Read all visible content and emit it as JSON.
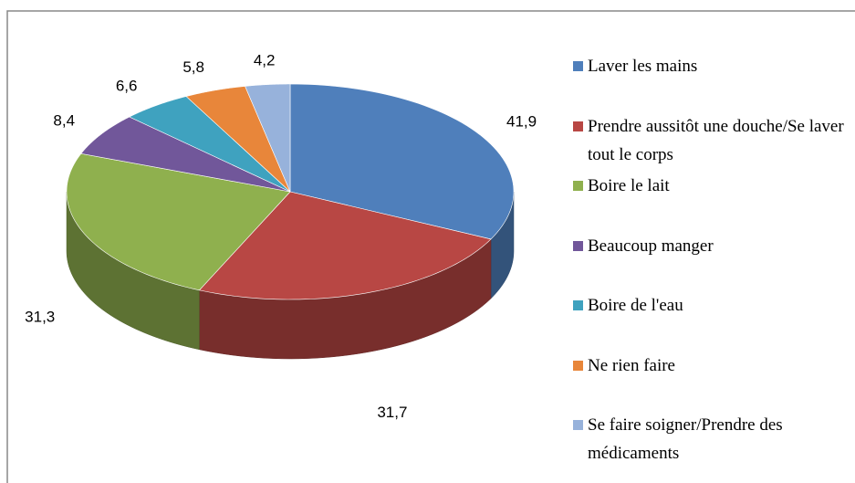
{
  "chart_data": {
    "type": "pie",
    "categories": [
      "Laver les mains",
      "Prendre aussitôt une douche/Se laver tout le corps",
      "Boire le lait",
      "Beaucoup manger",
      "Boire de l'eau",
      "Ne rien faire",
      "Se faire soigner/Prendre des médicaments"
    ],
    "values": [
      41.9,
      31.7,
      31.3,
      8.4,
      6.6,
      5.8,
      4.2
    ],
    "value_labels": [
      "41,9",
      "31,7",
      "31,3",
      "8,4",
      "6,6",
      "5,8",
      "4,2"
    ],
    "colors": [
      "#4f7fbb",
      "#b84744",
      "#8fb04e",
      "#71579a",
      "#3fa2bf",
      "#e8863a",
      "#97b2db"
    ],
    "legend": "right"
  }
}
